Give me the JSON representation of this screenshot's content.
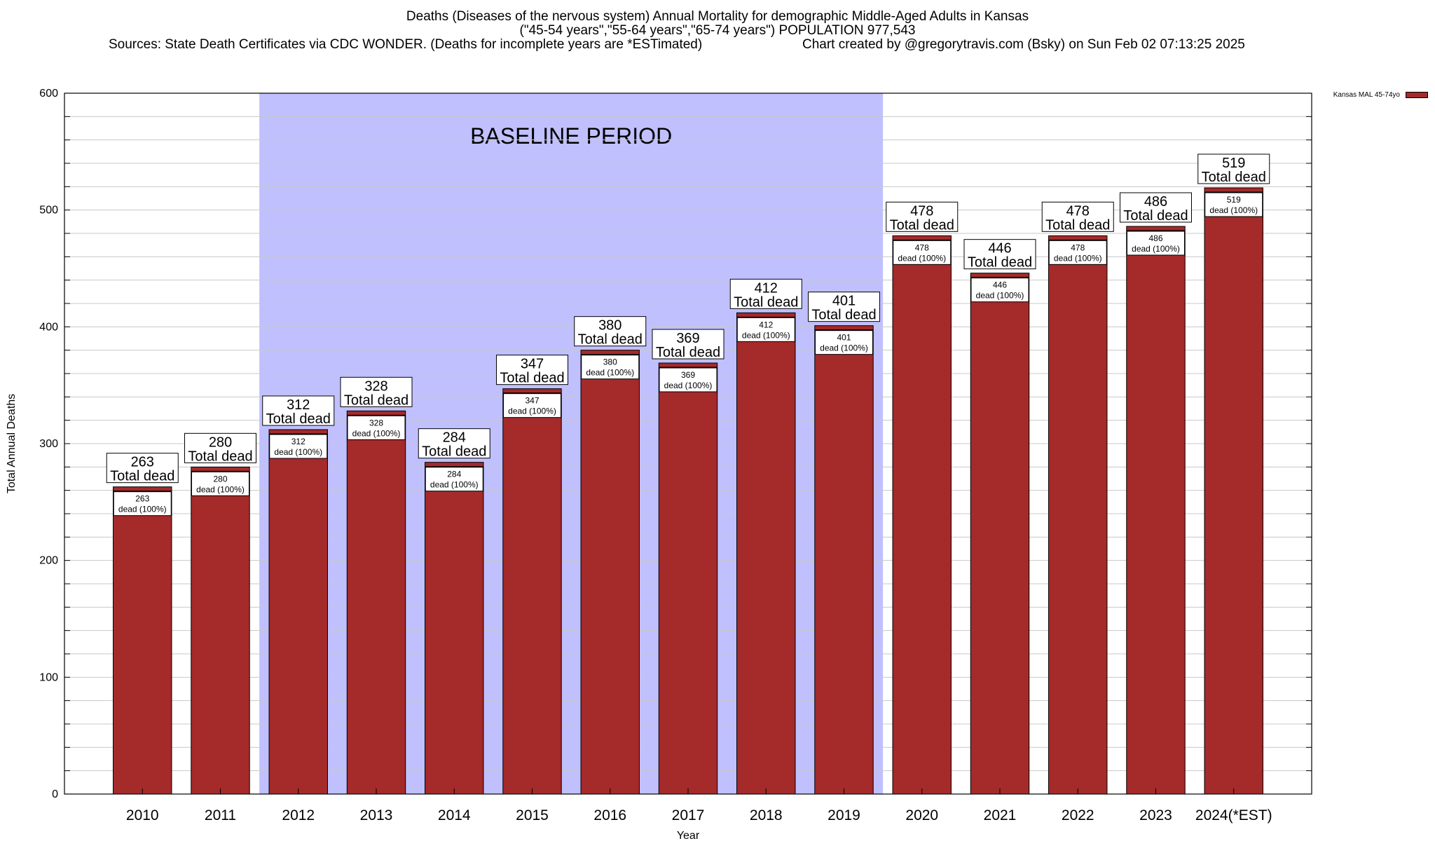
{
  "title": {
    "line1": "Deaths (Diseases of the nervous system) Annual Mortality for demographic Middle-Aged Adults in Kansas",
    "line2": "(\"45-54 years\",\"55-64 years\",\"65-74 years\") POPULATION 977,543",
    "line3_left": "Sources: State Death Certificates via CDC WONDER. (Deaths for incomplete years are *ESTimated)",
    "line3_right": "Chart created by @gregorytravis.com (Bsky) on Sun Feb 02 07:13:25 2025"
  },
  "legend": {
    "label": "Kansas MAL 45-74yo",
    "color": "#a52a2a"
  },
  "colors": {
    "bar": "#a52a2a",
    "baseline": "#c0c0ff",
    "grid": "#c8c8c8"
  },
  "chart_data": {
    "type": "bar",
    "xlabel": "Year",
    "ylabel": "Total Annual Deaths",
    "ylim": [
      0,
      600
    ],
    "yticks": [
      0,
      100,
      200,
      300,
      400,
      500,
      600
    ],
    "grid": true,
    "legend_position": "top-right",
    "categories": [
      "2010",
      "2011",
      "2012",
      "2013",
      "2014",
      "2015",
      "2016",
      "2017",
      "2018",
      "2019",
      "2020",
      "2021",
      "2022",
      "2023",
      "2024(*EST)"
    ],
    "series": [
      {
        "name": "Kansas MAL 45-74yo",
        "values": [
          263,
          280,
          312,
          328,
          284,
          347,
          380,
          369,
          412,
          401,
          478,
          446,
          478,
          486,
          519
        ]
      }
    ],
    "value_label_suffix": "Total dead",
    "inner_label_suffix": "dead (100%)",
    "baseline_period": {
      "label": "BASELINE PERIOD",
      "start": "2012",
      "end": "2019"
    }
  }
}
